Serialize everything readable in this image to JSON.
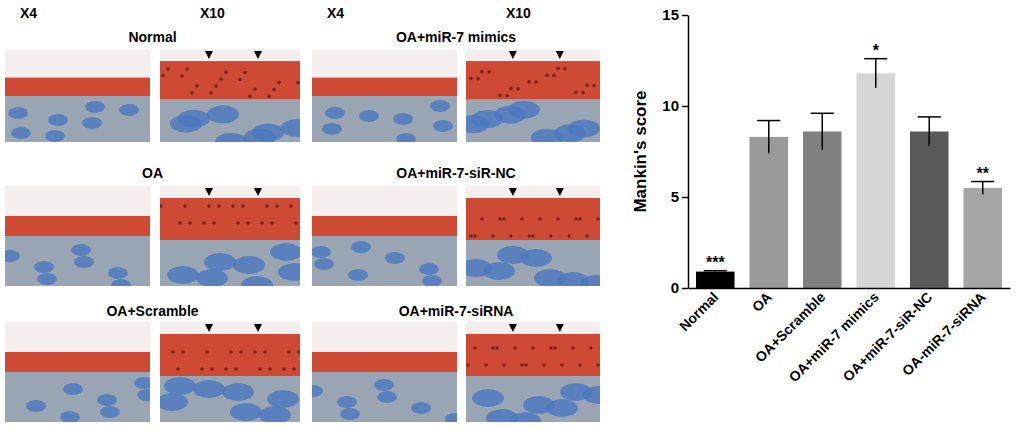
{
  "figure": {
    "column_headers": [
      "X4",
      "X10",
      "X4",
      "X10"
    ],
    "panels": [
      {
        "label": "Normal"
      },
      {
        "label": "OA"
      },
      {
        "label": "OA+Scramble"
      },
      {
        "label": "OA+miR-7 mimics"
      },
      {
        "label": "OA+miR-7-siR-NC"
      },
      {
        "label": "OA+miR-7-siRNA"
      }
    ]
  },
  "chart_data": {
    "type": "bar",
    "y_label": "Mankin's score",
    "categories": [
      "Normal",
      "OA",
      "OA+Scramble",
      "OA+miR-7 mimics",
      "OA+miR-7-siR-NC",
      "OA-miR-7-siRNA"
    ],
    "values": [
      0.9,
      8.3,
      8.6,
      11.8,
      8.6,
      5.5
    ],
    "errors": [
      0.05,
      0.9,
      1.0,
      0.8,
      0.8,
      0.35
    ],
    "significance": [
      "***",
      null,
      null,
      "*",
      null,
      "**"
    ],
    "colors": [
      "#000000",
      "#999999",
      "#808080",
      "#d6d6d6",
      "#595959",
      "#a6a6a6"
    ],
    "ylim": [
      0,
      15
    ],
    "yticks": [
      0,
      5,
      10,
      15
    ],
    "grid": false
  }
}
